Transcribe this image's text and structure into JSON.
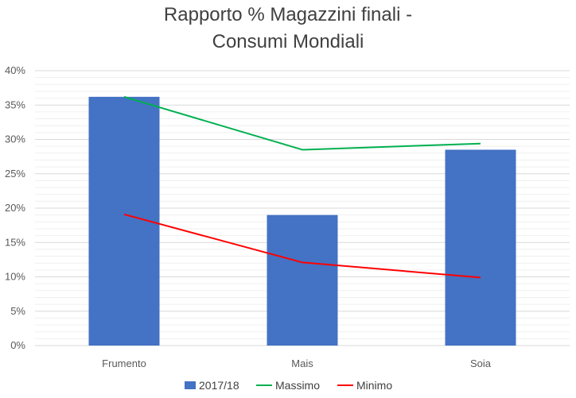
{
  "chart_data": {
    "type": "bar",
    "title": [
      "Rapporto % Magazzini finali -",
      "Consumi Mondiali"
    ],
    "categories": [
      "Frumento",
      "Mais",
      "Soia"
    ],
    "ylim": [
      0,
      40
    ],
    "yticks": [
      "0%",
      "5%",
      "10%",
      "15%",
      "20%",
      "25%",
      "30%",
      "35%",
      "40%"
    ],
    "grid": true,
    "legend_position": "bottom",
    "series": [
      {
        "name": "2017/18",
        "kind": "bar",
        "color": "#4472C4",
        "values": [
          36.2,
          19.0,
          28.5
        ]
      },
      {
        "name": "Massimo",
        "kind": "line",
        "color": "#00B050",
        "values": [
          36.2,
          28.5,
          29.4
        ]
      },
      {
        "name": "Minimo",
        "kind": "line",
        "color": "#FF0000",
        "values": [
          19.1,
          12.1,
          9.9
        ]
      }
    ]
  }
}
